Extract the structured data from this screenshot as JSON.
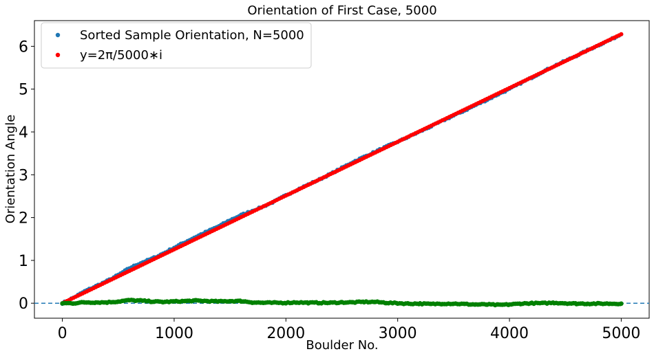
{
  "chart_data": {
    "type": "scatter",
    "title": "Orientation of First Case, 5000",
    "xlabel": "Boulder No.",
    "ylabel": "Orientation Angle",
    "xlim": [
      -250,
      5250
    ],
    "ylim": [
      -0.35,
      6.6
    ],
    "xticks": [
      0,
      1000,
      2000,
      3000,
      4000,
      5000
    ],
    "yticks": [
      0,
      1,
      2,
      3,
      4,
      5,
      6
    ],
    "xtick_labels": [
      "0",
      "1000",
      "2000",
      "3000",
      "4000",
      "5000"
    ],
    "ytick_labels": [
      "0",
      "1",
      "2",
      "3",
      "4",
      "5",
      "6"
    ],
    "grid": false,
    "legend_position": "top-left",
    "reference_line": {
      "y": 0,
      "style": "dashed",
      "color": "#1f77b4"
    },
    "series": [
      {
        "name": "Sorted Sample Orientation, N=5000",
        "color": "#1f77b4",
        "x": [
          0,
          100,
          200,
          300,
          400,
          500,
          600,
          700,
          800,
          900,
          1000,
          1100,
          1200,
          1300,
          1400,
          1500,
          1600,
          1700,
          1800,
          1900,
          2000,
          2100,
          2200,
          2300,
          2400,
          2500,
          2600,
          2700,
          2800,
          2900,
          3000,
          3100,
          3200,
          3300,
          3400,
          3500,
          3600,
          3700,
          3800,
          3900,
          4000,
          4100,
          4200,
          4300,
          4400,
          4500,
          4600,
          4700,
          4800,
          4900,
          5000
        ],
        "y": [
          0.0,
          0.13,
          0.28,
          0.4,
          0.52,
          0.66,
          0.82,
          0.94,
          1.04,
          1.16,
          1.3,
          1.43,
          1.56,
          1.68,
          1.8,
          1.94,
          2.06,
          2.16,
          2.26,
          2.38,
          2.52,
          2.65,
          2.77,
          2.89,
          3.02,
          3.16,
          3.3,
          3.42,
          3.54,
          3.66,
          3.77,
          3.89,
          4.01,
          4.13,
          4.26,
          4.38,
          4.5,
          4.63,
          4.75,
          4.88,
          5.0,
          5.14,
          5.27,
          5.41,
          5.54,
          5.66,
          5.78,
          5.91,
          6.03,
          6.15,
          6.28
        ]
      },
      {
        "name": "y=2π/5000∗i",
        "color": "#ff0000",
        "x": [
          0,
          5000
        ],
        "y": [
          0,
          6.283
        ]
      },
      {
        "name": "",
        "color": "#008000",
        "x": [
          0,
          100,
          200,
          300,
          400,
          500,
          600,
          700,
          800,
          900,
          1000,
          1100,
          1200,
          1300,
          1400,
          1500,
          1600,
          1700,
          1800,
          1900,
          2000,
          2100,
          2200,
          2300,
          2400,
          2500,
          2600,
          2700,
          2800,
          2900,
          3000,
          3100,
          3200,
          3300,
          3400,
          3500,
          3600,
          3700,
          3800,
          3900,
          4000,
          4100,
          4200,
          4300,
          4400,
          4500,
          4600,
          4700,
          4800,
          4900,
          5000
        ],
        "y": [
          0.0,
          0.0,
          0.02,
          0.02,
          0.02,
          0.04,
          0.07,
          0.06,
          0.04,
          0.03,
          0.04,
          0.05,
          0.06,
          0.05,
          0.04,
          0.05,
          0.05,
          0.02,
          0.01,
          0.01,
          0.01,
          0.02,
          0.01,
          0.01,
          0.01,
          0.02,
          0.02,
          0.03,
          0.03,
          0.01,
          0.0,
          -0.01,
          -0.01,
          -0.02,
          -0.01,
          -0.01,
          -0.02,
          -0.03,
          -0.03,
          -0.04,
          -0.03,
          -0.01,
          0.0,
          0.0,
          0.01,
          0.0,
          -0.01,
          -0.01,
          -0.01,
          -0.01,
          -0.01
        ]
      }
    ]
  }
}
